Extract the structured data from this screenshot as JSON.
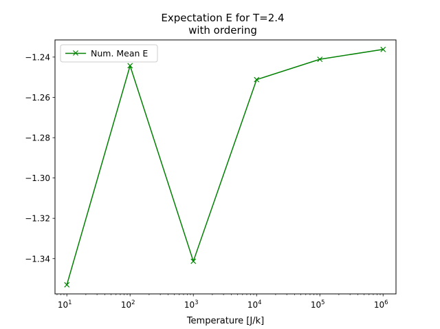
{
  "chart_data": {
    "type": "line",
    "title": [
      "Expectation E for T=2.4",
      "with ordering"
    ],
    "xlabel": "Temperature [J/k]",
    "ylabel": "",
    "x_scale": "log",
    "xlim": [
      6.5,
      1600000
    ],
    "ylim": [
      -1.3575,
      -1.2315
    ],
    "x_ticks": [
      {
        "value": 10,
        "base": "10",
        "exp": "1"
      },
      {
        "value": 100,
        "base": "10",
        "exp": "2"
      },
      {
        "value": 1000,
        "base": "10",
        "exp": "3"
      },
      {
        "value": 10000,
        "base": "10",
        "exp": "4"
      },
      {
        "value": 100000,
        "base": "10",
        "exp": "5"
      },
      {
        "value": 1000000,
        "base": "10",
        "exp": "6"
      }
    ],
    "y_ticks": [
      {
        "value": -1.24,
        "label": "−1.24"
      },
      {
        "value": -1.26,
        "label": "−1.26"
      },
      {
        "value": -1.28,
        "label": "−1.28"
      },
      {
        "value": -1.3,
        "label": "−1.30"
      },
      {
        "value": -1.32,
        "label": "−1.32"
      },
      {
        "value": -1.34,
        "label": "−1.34"
      }
    ],
    "series": [
      {
        "name": "Num. Mean E",
        "color": "#008000",
        "marker": "x",
        "x": [
          10,
          100,
          1000,
          10000,
          100000,
          1000000
        ],
        "y": [
          -1.353,
          -1.2443,
          -1.3413,
          -1.2512,
          -1.2411,
          -1.2362
        ]
      }
    ],
    "legend": "top-left",
    "grid": false
  }
}
